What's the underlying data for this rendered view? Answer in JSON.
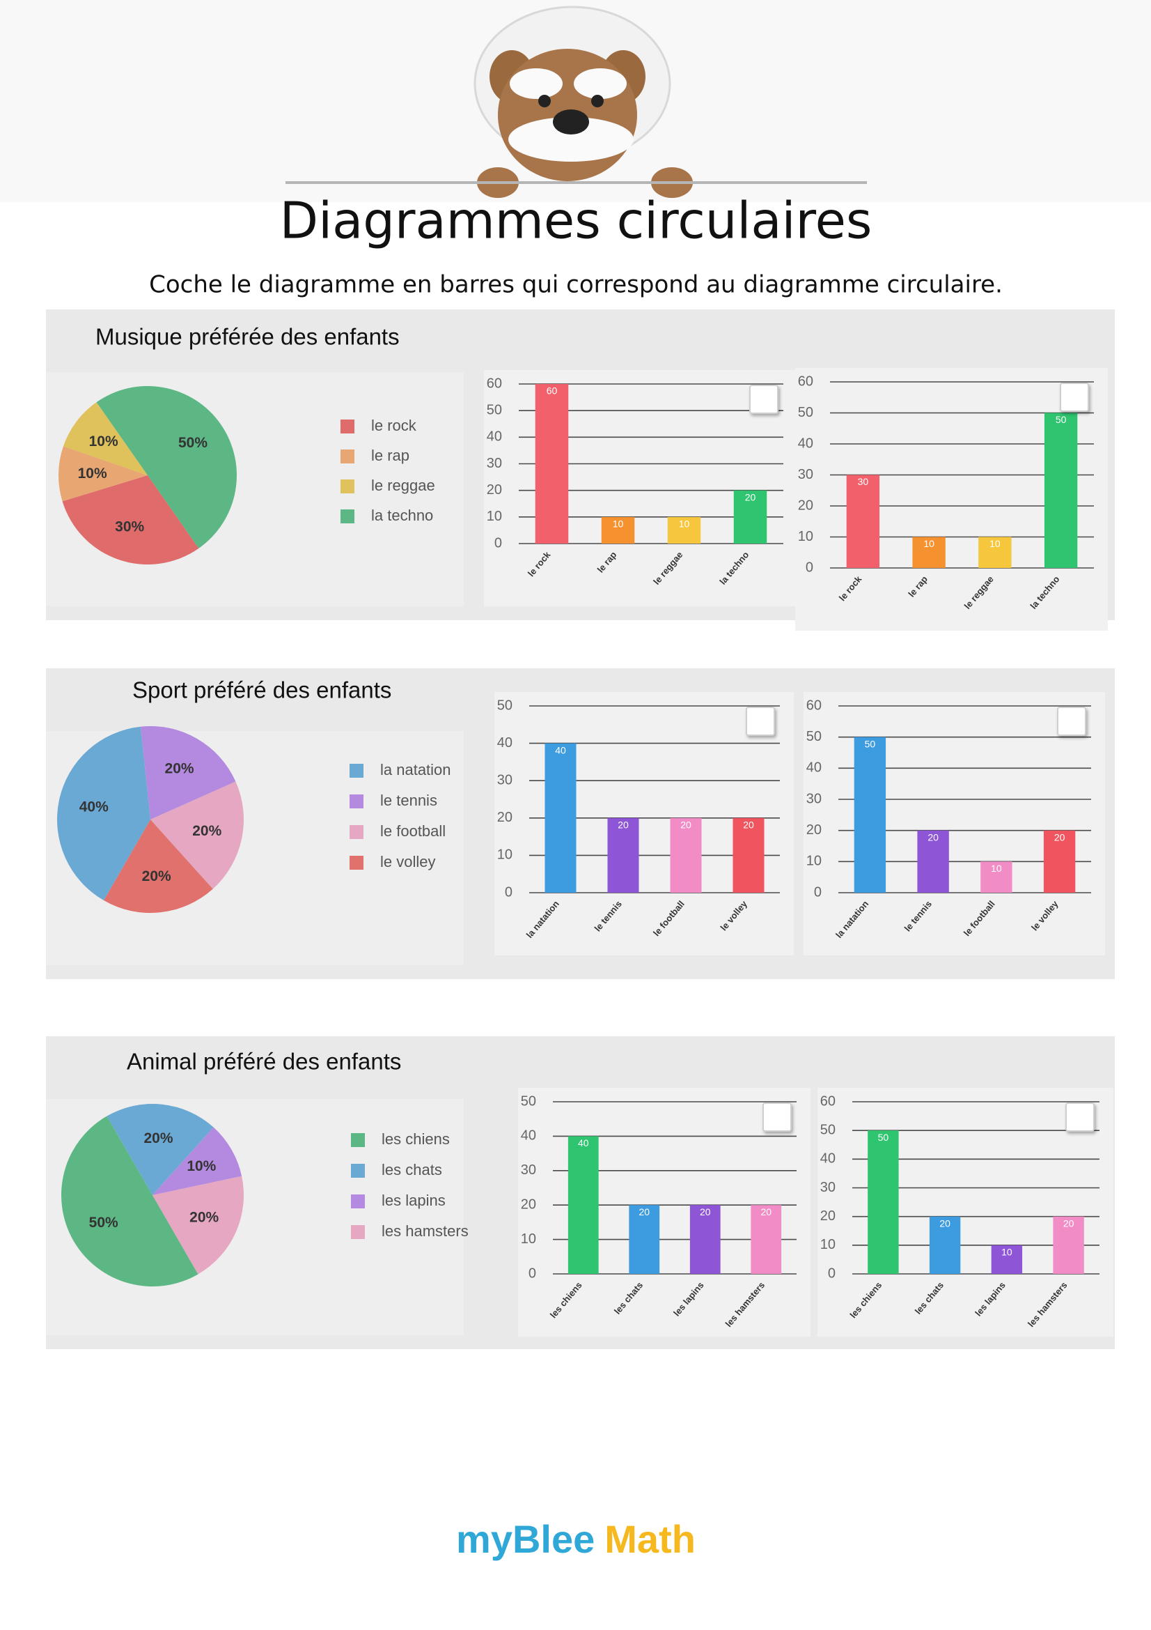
{
  "title": "Diagrammes circulaires",
  "instruction": "Coche le diagramme en barres qui correspond au diagramme circulaire.",
  "logo": [
    "myBlee",
    "Math"
  ],
  "chart_data": [
    {
      "type": "pie",
      "title": "Musique préférée des enfants",
      "categories": [
        "le rock",
        "le rap",
        "le reggae",
        "la techno"
      ],
      "values": [
        30,
        10,
        10,
        50
      ],
      "value_labels": [
        "30%",
        "10%",
        "10%",
        "50%"
      ],
      "colors": [
        "#e06b6b",
        "#e8a672",
        "#dfc25c",
        "#5cb784"
      ]
    },
    {
      "type": "bar",
      "categories": [
        "le rock",
        "le rap",
        "le reggae",
        "la techno"
      ],
      "values": [
        60,
        10,
        10,
        20
      ],
      "colors": [
        "#f2616b",
        "#f5922f",
        "#f6c63c",
        "#2fc46f"
      ],
      "ylim": [
        0,
        60
      ],
      "yticks": [
        0,
        10,
        20,
        30,
        40,
        50,
        60
      ]
    },
    {
      "type": "bar",
      "categories": [
        "le rock",
        "le rap",
        "le reggae",
        "la techno"
      ],
      "values": [
        30,
        10,
        10,
        50
      ],
      "colors": [
        "#f2616b",
        "#f5922f",
        "#f6c63c",
        "#2fc46f"
      ],
      "ylim": [
        0,
        60
      ],
      "yticks": [
        0,
        10,
        20,
        30,
        40,
        50,
        60
      ]
    },
    {
      "type": "pie",
      "title": "Sport préféré des enfants",
      "categories": [
        "la natation",
        "le tennis",
        "le football",
        "le volley"
      ],
      "values": [
        40,
        20,
        20,
        20
      ],
      "value_labels": [
        "40%",
        "20%",
        "20%",
        "20%"
      ],
      "colors": [
        "#6ba9d5",
        "#b48ae0",
        "#e5a7c1",
        "#e0716c"
      ]
    },
    {
      "type": "bar",
      "categories": [
        "la natation",
        "le tennis",
        "le football",
        "le volley"
      ],
      "values": [
        40,
        20,
        20,
        20
      ],
      "colors": [
        "#3d9be0",
        "#8e55d6",
        "#f28cc6",
        "#f0545e"
      ],
      "ylim": [
        0,
        50
      ],
      "yticks": [
        0,
        10,
        20,
        30,
        40,
        50
      ]
    },
    {
      "type": "bar",
      "categories": [
        "la natation",
        "le tennis",
        "le football",
        "le volley"
      ],
      "values": [
        50,
        20,
        10,
        20
      ],
      "colors": [
        "#3d9be0",
        "#8e55d6",
        "#f28cc6",
        "#f0545e"
      ],
      "ylim": [
        0,
        60
      ],
      "yticks": [
        0,
        10,
        20,
        30,
        40,
        50,
        60
      ]
    },
    {
      "type": "pie",
      "title": "Animal préféré des enfants",
      "categories": [
        "les chiens",
        "les chats",
        "les lapins",
        "les hamsters"
      ],
      "values": [
        50,
        20,
        10,
        20
      ],
      "value_labels": [
        "50%",
        "20%",
        "10%",
        "20%"
      ],
      "colors": [
        "#5cb784",
        "#6ba9d5",
        "#b48ae0",
        "#e5a7c1"
      ]
    },
    {
      "type": "bar",
      "categories": [
        "les chiens",
        "les chats",
        "les lapins",
        "les hamsters"
      ],
      "values": [
        40,
        20,
        20,
        20
      ],
      "colors": [
        "#2fc46f",
        "#3d9be0",
        "#8e55d6",
        "#f28cc6"
      ],
      "ylim": [
        0,
        50
      ],
      "yticks": [
        0,
        10,
        20,
        30,
        40,
        50
      ]
    },
    {
      "type": "bar",
      "categories": [
        "les chiens",
        "les chats",
        "les lapins",
        "les hamsters"
      ],
      "values": [
        50,
        20,
        10,
        20
      ],
      "colors": [
        "#2fc46f",
        "#3d9be0",
        "#8e55d6",
        "#f28cc6"
      ],
      "ylim": [
        0,
        60
      ],
      "yticks": [
        0,
        10,
        20,
        30,
        40,
        50,
        60
      ]
    }
  ]
}
